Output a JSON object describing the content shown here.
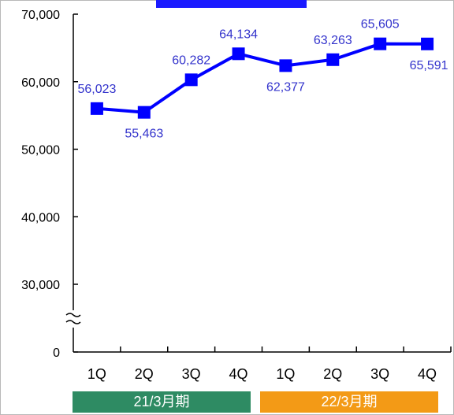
{
  "chart_data": {
    "type": "line",
    "title": "",
    "xlabel": "",
    "ylabel": "",
    "categories": [
      "1Q",
      "2Q",
      "3Q",
      "4Q",
      "1Q",
      "2Q",
      "3Q",
      "4Q"
    ],
    "series": [
      {
        "values": [
          56023,
          55463,
          60282,
          64134,
          62377,
          63263,
          65605,
          65591
        ],
        "labels": [
          "56,023",
          "55,463",
          "60,282",
          "64,134",
          "62,377",
          "63,263",
          "65,605",
          "65,591"
        ],
        "label_position": [
          "above",
          "below",
          "above",
          "above",
          "below",
          "above",
          "above",
          "below"
        ],
        "color": "#0000ff",
        "label_color": "#3333cc"
      }
    ],
    "ylim": [
      0,
      70000
    ],
    "axis_break": true,
    "axis_break_below": 30000,
    "y_ticks": [
      {
        "value": 70000,
        "label": "70,000"
      },
      {
        "value": 60000,
        "label": "60,000"
      },
      {
        "value": 50000,
        "label": "50,000"
      },
      {
        "value": 40000,
        "label": "40,000"
      },
      {
        "value": 30000,
        "label": "30,000"
      },
      {
        "value": 0,
        "label": "0"
      }
    ],
    "grid": false,
    "periods": [
      {
        "label": "21/3月期",
        "color": "#2e8b63",
        "quarters": 4
      },
      {
        "label": "22/3月期",
        "color": "#f39a16",
        "quarters": 4
      }
    ],
    "title_banner_color": "#1a1aff"
  }
}
